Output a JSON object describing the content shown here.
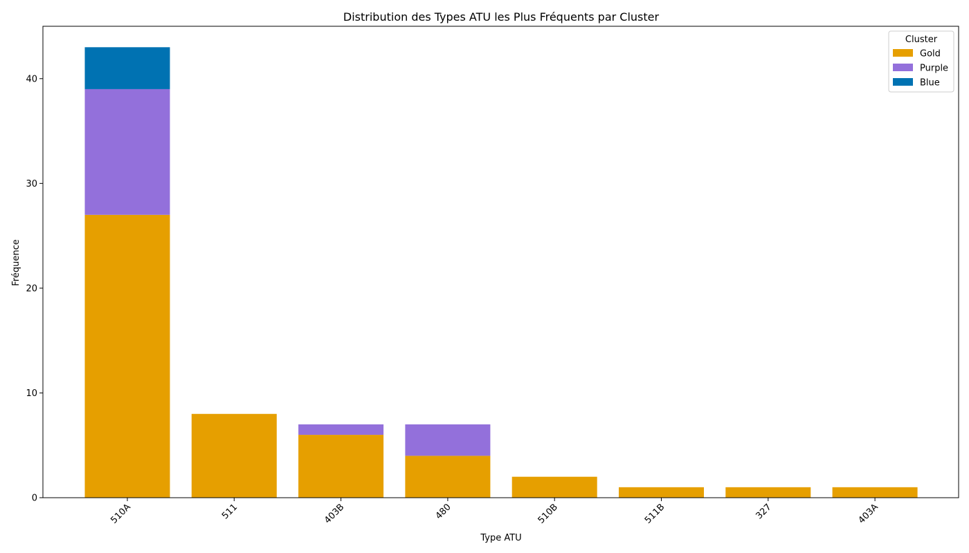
{
  "chart_data": {
    "type": "bar",
    "stacked": true,
    "title": "Distribution des Types ATU les Plus Fréquents par Cluster",
    "xlabel": "Type ATU",
    "ylabel": "Fréquence",
    "categories": [
      "510A",
      "511",
      "403B",
      "480",
      "510B",
      "511B",
      "327",
      "403A"
    ],
    "series": [
      {
        "name": "Gold",
        "color": "#E69F00",
        "values": [
          27,
          8,
          6,
          4,
          2,
          1,
          1,
          1
        ]
      },
      {
        "name": "Purple",
        "color": "#9370DB",
        "values": [
          12,
          0,
          1,
          3,
          0,
          0,
          0,
          0
        ]
      },
      {
        "name": "Blue",
        "color": "#0072B2",
        "values": [
          4,
          0,
          0,
          0,
          0,
          0,
          0,
          0
        ]
      }
    ],
    "ylim": [
      0,
      45
    ],
    "yticks": [
      0,
      10,
      20,
      30,
      40
    ],
    "grid": false,
    "legend": {
      "title": "Cluster",
      "position": "top-right"
    }
  }
}
